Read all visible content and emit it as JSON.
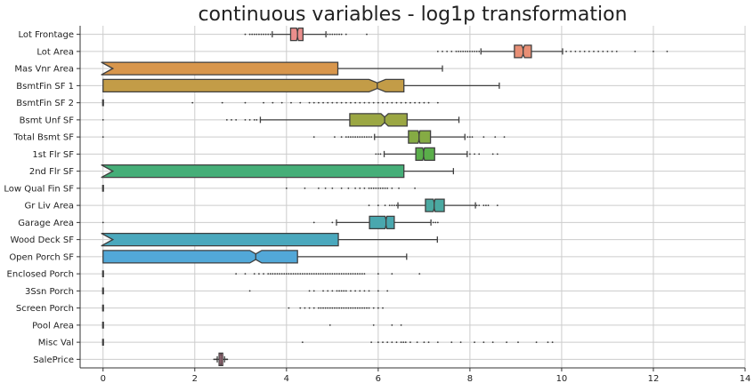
{
  "chart_data": {
    "type": "boxplot",
    "orientation": "horizontal",
    "notched": true,
    "title": "continuous variables - log1p transformation",
    "xlabel": "",
    "ylabel": "",
    "xlim": [
      -0.5,
      14
    ],
    "xticks": [
      0,
      2,
      4,
      6,
      8,
      10,
      12,
      14
    ],
    "grid": true,
    "categories": [
      "Lot Frontage",
      "Lot Area",
      "Mas Vnr Area",
      "BsmtFin SF 1",
      "BsmtFin SF 2",
      "Bsmt Unf SF",
      "Total Bsmt SF",
      "1st Flr SF",
      "2nd Flr SF",
      "Low Qual Fin SF",
      "Gr Liv Area",
      "Garage Area",
      "Wood Deck SF",
      "Open Porch SF",
      "Enclosed Porch",
      "3Ssn Porch",
      "Screen Porch",
      "Pool Area",
      "Misc Val",
      "SalePrice"
    ],
    "series": [
      {
        "q1": 4.09,
        "median": 4.24,
        "q3": 4.36,
        "whislo": 3.69,
        "whishi": 4.86,
        "notch": [
          4.22,
          4.26
        ],
        "color": "#ea8e8c",
        "fliers": [
          3.1,
          3.2,
          3.25,
          3.3,
          3.35,
          3.4,
          3.45,
          3.5,
          3.55,
          3.6,
          3.65,
          4.9,
          4.95,
          5.0,
          5.05,
          5.1,
          5.15,
          5.2,
          5.3,
          5.75
        ]
      },
      {
        "q1": 8.97,
        "median": 9.16,
        "q3": 9.34,
        "whislo": 8.24,
        "whishi": 10.02,
        "notch": [
          9.13,
          9.19
        ],
        "color": "#e88f75",
        "fliers": [
          7.3,
          7.4,
          7.5,
          7.6,
          7.7,
          7.75,
          7.8,
          7.85,
          7.9,
          7.95,
          8.0,
          8.05,
          8.1,
          8.15,
          8.2,
          10.1,
          10.2,
          10.3,
          10.4,
          10.5,
          10.6,
          10.7,
          10.8,
          10.9,
          11.0,
          11.1,
          11.2,
          11.6,
          12.0,
          12.3
        ]
      },
      {
        "q1": 0.0,
        "median": 0.0,
        "q3": 5.12,
        "whislo": 0.0,
        "whishi": 7.4,
        "notch": [
          -0.1,
          0.1
        ],
        "color": "#d8964c",
        "fliers": []
      },
      {
        "q1": 0.0,
        "median": 5.98,
        "q3": 6.56,
        "whislo": 0.0,
        "whishi": 8.64,
        "notch": [
          5.8,
          6.16
        ],
        "color": "#c39c47",
        "fliers": []
      },
      {
        "q1": 0.0,
        "median": 0.0,
        "q3": 0.0,
        "whislo": 0.0,
        "whishi": 0.0,
        "notch": [
          0,
          0
        ],
        "color": "#b0a14a",
        "fliers": [
          1.95,
          2.6,
          3.1,
          3.5,
          3.7,
          3.9,
          4.1,
          4.3,
          4.5,
          4.6,
          4.7,
          4.8,
          4.9,
          5.0,
          5.1,
          5.2,
          5.3,
          5.4,
          5.5,
          5.6,
          5.7,
          5.8,
          5.9,
          6.0,
          6.1,
          6.2,
          6.3,
          6.4,
          6.5,
          6.6,
          6.7,
          6.8,
          6.9,
          7.0,
          7.1,
          7.3
        ]
      },
      {
        "q1": 5.38,
        "median": 6.14,
        "q3": 6.63,
        "whislo": 3.43,
        "whishi": 7.76,
        "notch": [
          6.06,
          6.22
        ],
        "color": "#9ba743",
        "fliers": [
          0.0,
          2.7,
          2.8,
          2.9,
          3.1,
          3.2,
          3.3,
          3.35
        ]
      },
      {
        "q1": 6.66,
        "median": 6.89,
        "q3": 7.14,
        "whislo": 5.92,
        "whishi": 7.89,
        "notch": [
          6.87,
          6.91
        ],
        "color": "#85ab44",
        "fliers": [
          0.0,
          4.6,
          5.05,
          5.2,
          5.3,
          5.35,
          5.4,
          5.45,
          5.5,
          5.55,
          5.6,
          5.65,
          5.7,
          5.75,
          5.8,
          5.85,
          7.95,
          8.0,
          8.05,
          8.3,
          8.55,
          8.75
        ]
      },
      {
        "q1": 6.82,
        "median": 6.99,
        "q3": 7.23,
        "whislo": 6.13,
        "whishi": 7.94,
        "notch": [
          6.97,
          7.01
        ],
        "color": "#5aae4a",
        "fliers": [
          5.95,
          6.0,
          6.05,
          8.0,
          8.1,
          8.2,
          8.5,
          8.6
        ]
      },
      {
        "q1": 0.0,
        "median": 0.0,
        "q3": 6.56,
        "whislo": 0.0,
        "whishi": 7.64,
        "notch": [
          -0.1,
          0.1
        ],
        "color": "#45ae78",
        "fliers": []
      },
      {
        "q1": 0.0,
        "median": 0.0,
        "q3": 0.0,
        "whislo": 0.0,
        "whishi": 0.0,
        "notch": [
          0,
          0
        ],
        "color": "#48ab92",
        "fliers": [
          4.0,
          4.4,
          4.7,
          4.85,
          5.0,
          5.2,
          5.35,
          5.5,
          5.6,
          5.7,
          5.8,
          5.85,
          5.9,
          5.95,
          6.0,
          6.05,
          6.1,
          6.15,
          6.2,
          6.3,
          6.45,
          6.8
        ]
      },
      {
        "q1": 7.03,
        "median": 7.22,
        "q3": 7.44,
        "whislo": 6.43,
        "whishi": 8.12,
        "notch": [
          7.2,
          7.24
        ],
        "color": "#4aa9a1",
        "fliers": [
          5.8,
          6.0,
          6.15,
          6.25,
          6.3,
          6.35,
          6.4,
          8.15,
          8.2,
          8.3,
          8.35,
          8.4,
          8.6
        ]
      },
      {
        "q1": 5.81,
        "median": 6.17,
        "q3": 6.35,
        "whislo": 5.09,
        "whishi": 7.15,
        "notch": [
          6.15,
          6.19
        ],
        "color": "#49a7ae",
        "fliers": [
          0.0,
          4.6,
          5.0,
          7.2,
          7.25,
          7.3
        ]
      },
      {
        "q1": 0.0,
        "median": 0.0,
        "q3": 5.13,
        "whislo": 0.0,
        "whishi": 7.29,
        "notch": [
          -0.1,
          0.1
        ],
        "color": "#4aa8bd",
        "fliers": []
      },
      {
        "q1": 0.0,
        "median": 3.33,
        "q3": 4.24,
        "whislo": 0.0,
        "whishi": 6.62,
        "notch": [
          3.2,
          3.46
        ],
        "color": "#52a8d8",
        "fliers": []
      },
      {
        "q1": 0.0,
        "median": 0.0,
        "q3": 0.0,
        "whislo": 0.0,
        "whishi": 0.0,
        "notch": [
          0,
          0
        ],
        "color": "#7aa3e0",
        "fliers": [
          2.9,
          3.1,
          3.3,
          3.4,
          3.5,
          3.6,
          3.65,
          3.7,
          3.75,
          3.8,
          3.85,
          3.9,
          3.95,
          4.0,
          4.05,
          4.1,
          4.15,
          4.2,
          4.25,
          4.3,
          4.35,
          4.4,
          4.45,
          4.5,
          4.55,
          4.6,
          4.65,
          4.7,
          4.75,
          4.8,
          4.85,
          4.9,
          4.95,
          5.0,
          5.05,
          5.1,
          5.15,
          5.2,
          5.25,
          5.3,
          5.35,
          5.4,
          5.45,
          5.5,
          5.55,
          5.6,
          5.65,
          5.7,
          6.0,
          6.3,
          6.9
        ]
      },
      {
        "q1": 0.0,
        "median": 0.0,
        "q3": 0.0,
        "whislo": 0.0,
        "whishi": 0.0,
        "notch": [
          0,
          0
        ],
        "color": "#a39ae4",
        "fliers": [
          3.2,
          4.5,
          4.6,
          4.8,
          4.9,
          5.0,
          5.1,
          5.15,
          5.2,
          5.25,
          5.3,
          5.4,
          5.5,
          5.6,
          5.7,
          5.8,
          6.0,
          6.2
        ]
      },
      {
        "q1": 0.0,
        "median": 0.0,
        "q3": 0.0,
        "whislo": 0.0,
        "whishi": 0.0,
        "notch": [
          0,
          0
        ],
        "color": "#c493e0",
        "fliers": [
          4.05,
          4.3,
          4.4,
          4.5,
          4.6,
          4.7,
          4.75,
          4.8,
          4.85,
          4.9,
          4.95,
          5.0,
          5.05,
          5.1,
          5.15,
          5.2,
          5.25,
          5.3,
          5.35,
          5.4,
          5.45,
          5.5,
          5.55,
          5.6,
          5.65,
          5.7,
          5.75,
          5.8,
          5.9,
          6.0,
          6.1
        ]
      },
      {
        "q1": 0.0,
        "median": 0.0,
        "q3": 0.0,
        "whislo": 0.0,
        "whishi": 0.0,
        "notch": [
          0,
          0
        ],
        "color": "#dc8fcf",
        "fliers": [
          4.95,
          5.9,
          6.3,
          6.5
        ]
      },
      {
        "q1": 0.0,
        "median": 0.0,
        "q3": 0.0,
        "whislo": 0.0,
        "whishi": 0.0,
        "notch": [
          0,
          0
        ],
        "color": "#e88cbd",
        "fliers": [
          4.35,
          5.85,
          6.0,
          6.1,
          6.2,
          6.3,
          6.4,
          6.5,
          6.55,
          6.6,
          6.7,
          6.85,
          7.0,
          7.1,
          7.3,
          7.6,
          7.8,
          8.1,
          8.3,
          8.5,
          8.8,
          9.05,
          9.45,
          9.7,
          9.8
        ]
      },
      {
        "q1": 2.53,
        "median": 2.57,
        "q3": 2.61,
        "whislo": 2.49,
        "whishi": 2.65,
        "notch": [
          2.565,
          2.575
        ],
        "color": "#ea8ea8",
        "fliers": [
          2.42,
          2.45,
          2.47,
          2.67,
          2.69,
          2.71
        ]
      }
    ]
  }
}
